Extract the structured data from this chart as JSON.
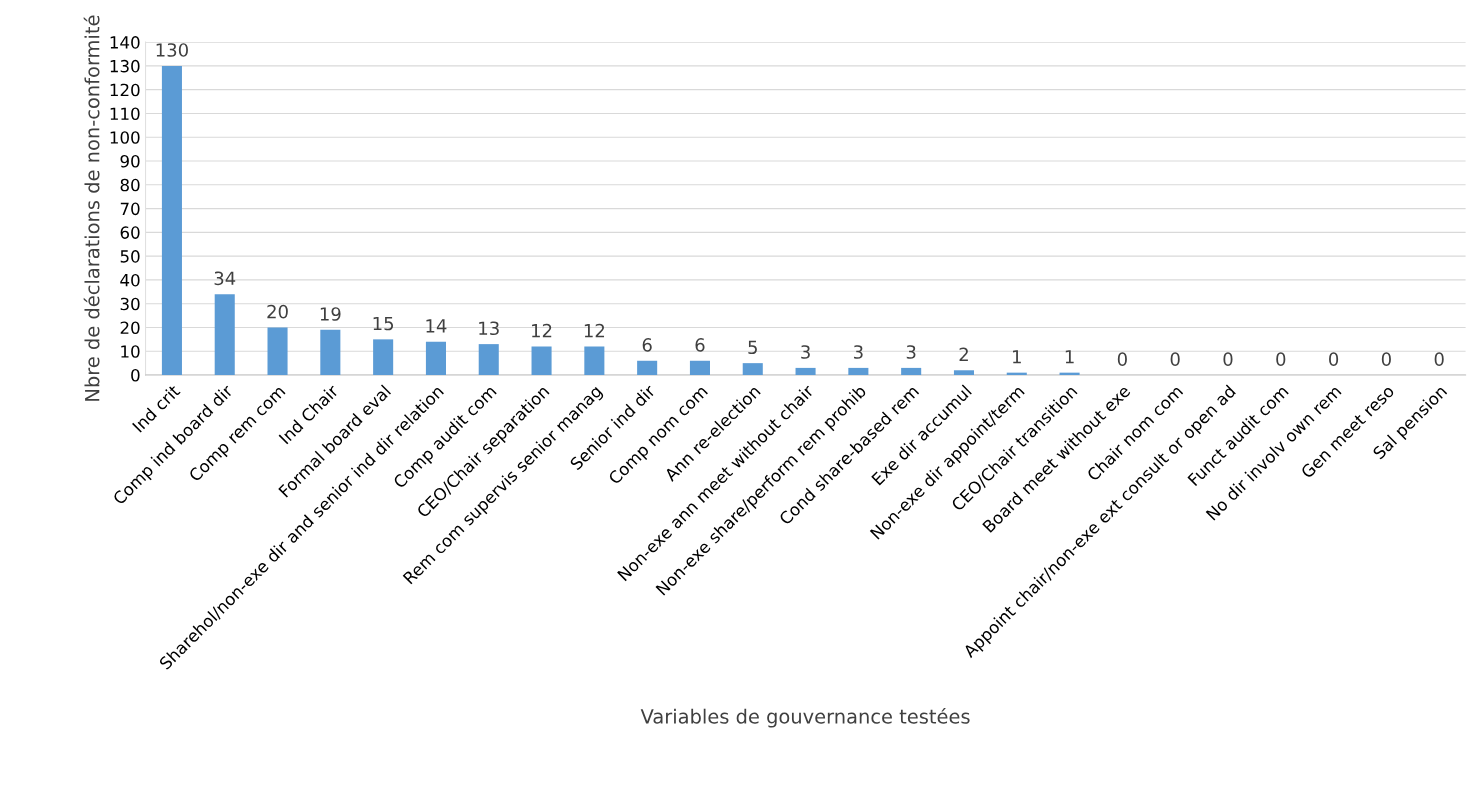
{
  "chart_data": {
    "type": "bar",
    "xlabel": "Variables de gouvernance testées",
    "ylabel": "Nbre de déclarations de non-conformité",
    "categories": [
      "Ind crit",
      "Comp ind board dir",
      "Comp rem com",
      "Ind Chair",
      "Formal board eval",
      "Sharehol/non-exe dir and senior ind dir relation",
      "Comp audit com",
      "CEO/Chair separation",
      "Rem com supervis senior manag",
      "Senior ind dir",
      "Comp nom com",
      "Ann re-election",
      "Non-exe ann meet without chair",
      "Non-exe share/perform rem prohib",
      "Cond share-based rem",
      "Exe dir accumul",
      "Non-exe dir appoint/term",
      "CEO/Chair transition",
      "Board meet without exe",
      "Chair nom com",
      "Appoint chair/non-exe ext consult or open ad",
      "Funct audit com",
      "No dir involv own rem",
      "Gen meet reso",
      "Sal pension"
    ],
    "values": [
      130,
      34,
      20,
      19,
      15,
      14,
      13,
      12,
      12,
      6,
      6,
      5,
      3,
      3,
      3,
      2,
      1,
      1,
      0,
      0,
      0,
      0,
      0,
      0,
      0
    ],
    "color": "#5b9bd5",
    "ylim": [
      0,
      140
    ],
    "yticks": [
      0,
      10,
      20,
      30,
      40,
      50,
      60,
      70,
      80,
      90,
      100,
      110,
      120,
      130,
      140
    ],
    "grid": "y",
    "data_labels": true,
    "legend": false
  }
}
